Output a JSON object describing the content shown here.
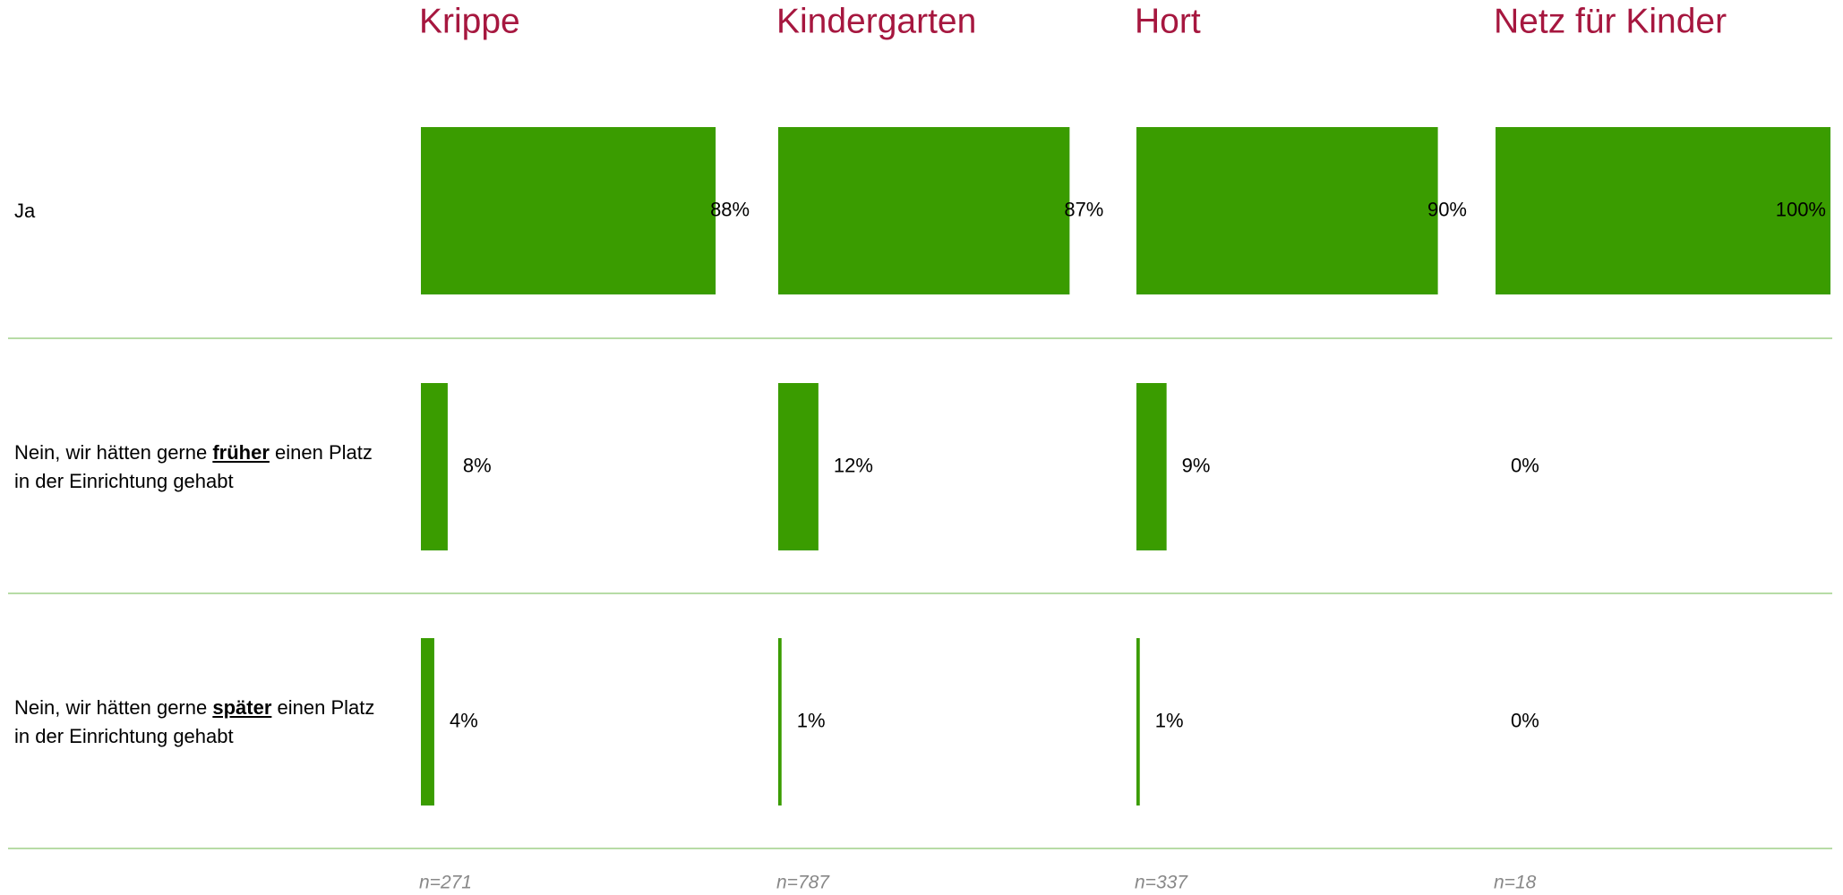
{
  "chart_data": {
    "type": "bar",
    "orientation": "horizontal",
    "categories": [
      "Ja",
      "Nein, wir hätten gerne früher einen Platz in der Einrichtung gehabt",
      "Nein, wir hätten gerne später einen Platz in der Einrichtung gehabt"
    ],
    "emphasis": [
      null,
      "früher",
      "später"
    ],
    "color": "#3a9c00",
    "xlim": [
      0,
      100
    ],
    "series": [
      {
        "name": "Krippe",
        "values": [
          88,
          8,
          4
        ],
        "value_labels": [
          "88%",
          "8%",
          "4%"
        ],
        "note": "n=271"
      },
      {
        "name": "Kindergarten",
        "values": [
          87,
          12,
          1
        ],
        "value_labels": [
          "87%",
          "12%",
          "1%"
        ],
        "note": "n=787"
      },
      {
        "name": "Hort",
        "values": [
          90,
          9,
          1
        ],
        "value_labels": [
          "90%",
          "9%",
          "1%"
        ],
        "note": "n=337"
      },
      {
        "name": "Netz für Kinder",
        "values": [
          100,
          0,
          0
        ],
        "value_labels": [
          "100%",
          "0%",
          "0%"
        ],
        "note": "n=18"
      }
    ]
  }
}
